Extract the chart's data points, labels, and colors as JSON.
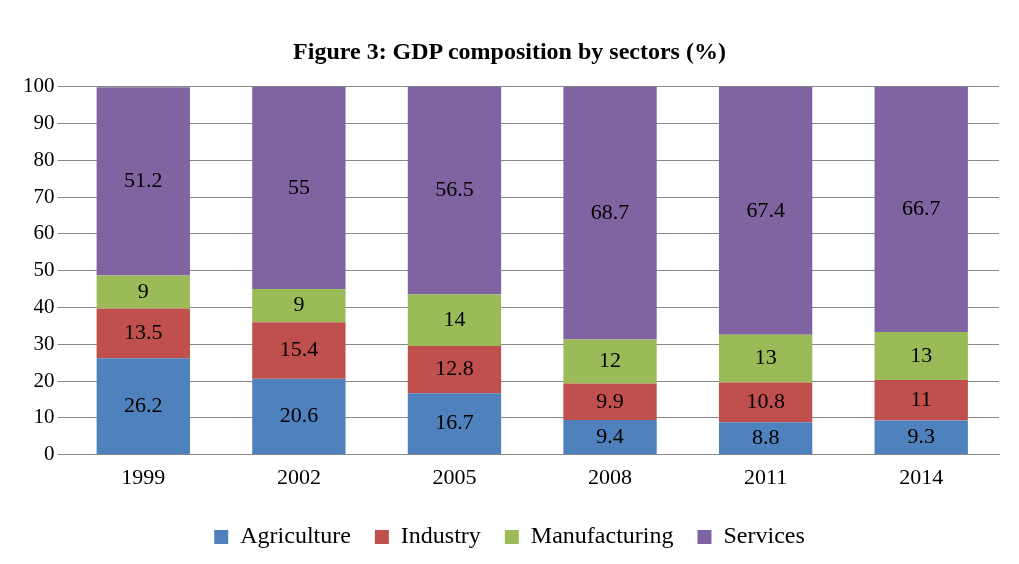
{
  "chart_data": {
    "type": "bar",
    "title": "Figure 3: GDP composition by sectors (%)",
    "categories": [
      "1999",
      "2002",
      "2005",
      "2008",
      "2011",
      "2014"
    ],
    "stacked": true,
    "ylim": [
      0,
      100
    ],
    "yticks": [
      0,
      10,
      20,
      30,
      40,
      50,
      60,
      70,
      80,
      90,
      100
    ],
    "grid": "y",
    "legend": "bottom",
    "data_labels": true,
    "series": [
      {
        "name": "Agriculture",
        "color": "#4f81bd",
        "values": [
          26.2,
          20.6,
          16.7,
          9.4,
          8.8,
          9.3
        ]
      },
      {
        "name": "Industry",
        "color": "#c0504d",
        "values": [
          13.5,
          15.4,
          12.8,
          9.9,
          10.8,
          11
        ]
      },
      {
        "name": "Manufacturing",
        "color": "#9bbb59",
        "values": [
          9,
          9,
          14,
          12,
          13,
          13
        ]
      },
      {
        "name": "Services",
        "color": "#8064a2",
        "values": [
          51.2,
          55,
          56.5,
          68.7,
          67.4,
          66.7
        ]
      }
    ]
  }
}
